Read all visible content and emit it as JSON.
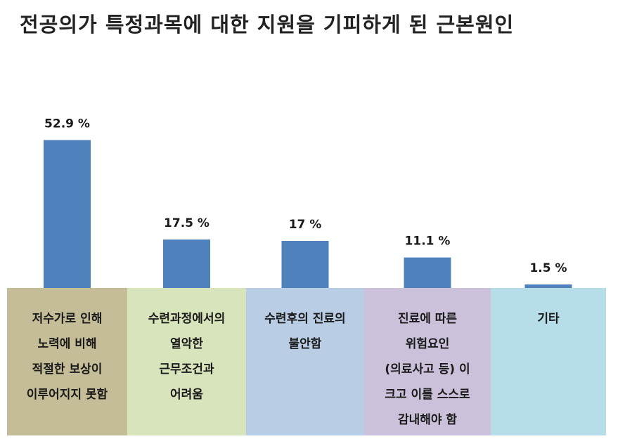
{
  "chart_data": {
    "type": "bar",
    "title": "전공의가 특정과목에 대한 지원을 기피하게 된 근본원인",
    "categories": [
      [
        "저수가로 인해",
        "노력에 비해",
        "적절한 보상이",
        "이루어지지 못함"
      ],
      [
        "수련과정에서의",
        "열악한",
        "근무조건과",
        "어려움"
      ],
      [
        "수련후의 진료의",
        "불안함"
      ],
      [
        "진료에 따른",
        "위험요인",
        "(의료사고 등) 이",
        "크고 이를 스스로",
        "감내해야 함"
      ],
      [
        "기타"
      ]
    ],
    "values": [
      52.9,
      17.5,
      17,
      11.1,
      1.5
    ],
    "value_labels": [
      "52.9 %",
      "17.5 %",
      "17 %",
      "11.1 %",
      "1.5 %"
    ],
    "unit": "%",
    "bar_color": "#4f81bd",
    "category_colors": [
      "#c4bd97",
      "#d8e4bc",
      "#b9cde5",
      "#ccc1da",
      "#b7dde8"
    ]
  }
}
